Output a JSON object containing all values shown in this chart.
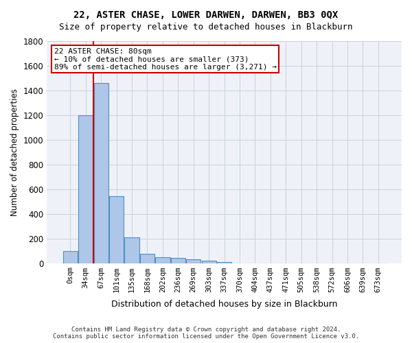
{
  "title": "22, ASTER CHASE, LOWER DARWEN, DARWEN, BB3 0QX",
  "subtitle": "Size of property relative to detached houses in Blackburn",
  "xlabel": "Distribution of detached houses by size in Blackburn",
  "ylabel": "Number of detached properties",
  "footer_line1": "Contains HM Land Registry data © Crown copyright and database right 2024.",
  "footer_line2": "Contains public sector information licensed under the Open Government Licence v3.0.",
  "bar_labels": [
    "0sqm",
    "34sqm",
    "67sqm",
    "101sqm",
    "135sqm",
    "168sqm",
    "202sqm",
    "236sqm",
    "269sqm",
    "303sqm",
    "337sqm",
    "370sqm",
    "404sqm",
    "437sqm",
    "471sqm",
    "505sqm",
    "538sqm",
    "572sqm",
    "606sqm",
    "639sqm",
    "673sqm"
  ],
  "bar_values": [
    100,
    1200,
    1460,
    540,
    210,
    75,
    50,
    40,
    30,
    18,
    8,
    0,
    0,
    0,
    0,
    0,
    0,
    0,
    0,
    0,
    0
  ],
  "bar_color": "#aec6e8",
  "bar_edge_color": "#4d8fc4",
  "ylim": [
    0,
    1800
  ],
  "yticks": [
    0,
    200,
    400,
    600,
    800,
    1000,
    1200,
    1400,
    1600,
    1800
  ],
  "property_line_color": "#cc0000",
  "annotation_line1": "22 ASTER CHASE: 80sqm",
  "annotation_line2": "← 10% of detached houses are smaller (373)",
  "annotation_line3": "89% of semi-detached houses are larger (3,271) →",
  "annotation_box_color": "#cc0000",
  "background_color": "#ffffff",
  "axes_bg_color": "#eef2f8",
  "grid_color": "#c8d0dc"
}
